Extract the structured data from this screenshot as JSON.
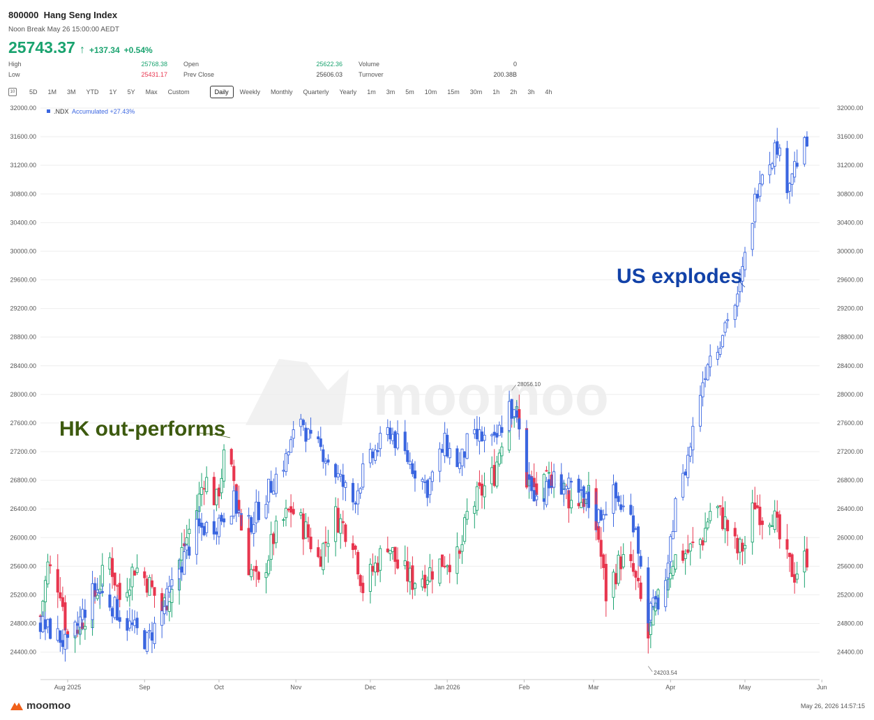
{
  "header": {
    "code": "800000",
    "name": "Hang Seng Index",
    "status": "Noon Break May 26 15:00:00 AEDT",
    "price": "25743.37",
    "change": "+137.34",
    "change_pct": "+0.54%"
  },
  "stats": {
    "high_label": "High",
    "high": "25768.38",
    "low_label": "Low",
    "low": "25431.17",
    "open_label": "Open",
    "open": "25622.36",
    "prev_label": "Prev Close",
    "prev": "25606.03",
    "vol_label": "Volume",
    "vol": "0",
    "turn_label": "Turnover",
    "turn": "200.38B"
  },
  "toolbar": {
    "icon": "10",
    "items": [
      "5D",
      "1M",
      "3M",
      "YTD",
      "1Y",
      "5Y",
      "Max",
      "Custom",
      "Daily",
      "Weekly",
      "Monthly",
      "Quarterly",
      "Yearly",
      "1m",
      "3m",
      "5m",
      "10m",
      "15m",
      "30m",
      "1h",
      "2h",
      "3h",
      "4h"
    ],
    "selected": "Daily"
  },
  "footer": {
    "brand": "moomoo",
    "timestamp": "May 26, 2026 14:57:15"
  },
  "colors": {
    "up": "#1aa36f",
    "down": "#e8364f",
    "series2": "#3b66e0",
    "grid": "#eeeeee",
    "hk_annotation": "#3d5a0f",
    "us_annotation": "#1242a8"
  },
  "chart_data": {
    "type": "candlestick",
    "watermark": "moomoo",
    "ylim": [
      24000,
      32000
    ],
    "yticks": [
      "32000.00",
      "31600.00",
      "31200.00",
      "30800.00",
      "30400.00",
      "30000.00",
      "29600.00",
      "29200.00",
      "28800.00",
      "28400.00",
      "28000.00",
      "27600.00",
      "27200.00",
      "26800.00",
      "26400.00",
      "26000.00",
      "25600.00",
      "25200.00",
      "24800.00",
      "24400.00"
    ],
    "xticks": [
      "Aug 2025",
      "Sep",
      "Oct",
      "Nov",
      "Dec",
      "Jan 2026",
      "Feb",
      "Mar",
      "Apr",
      "May",
      "Jun"
    ],
    "legend": {
      "symbol": ".NDX",
      "text": "Accumulated +27.43%"
    },
    "annotations": [
      {
        "text": "HK out-performs",
        "date": "2025-09-30",
        "value": 27250
      },
      {
        "text": "US explodes",
        "date": "2026-04-30",
        "value": 29550
      }
    ],
    "markers": [
      {
        "label": "28056.10",
        "date": "2026-01-27",
        "value": 28056.1
      },
      {
        "label": "24203.54",
        "date": "2026-03-23",
        "value": 24203.54
      }
    ],
    "series": [
      {
        "name": "800000",
        "hk_path": [
          [
            "2025-07-21",
            24900
          ],
          [
            "2025-07-24",
            25600
          ],
          [
            "2025-07-29",
            25300
          ],
          [
            "2025-08-01",
            24600
          ],
          [
            "2025-08-06",
            24800
          ],
          [
            "2025-08-12",
            25200
          ],
          [
            "2025-08-18",
            25700
          ],
          [
            "2025-08-22",
            25150
          ],
          [
            "2025-08-28",
            25600
          ],
          [
            "2025-09-02",
            25400
          ],
          [
            "2025-09-08",
            25000
          ],
          [
            "2025-09-12",
            25300
          ],
          [
            "2025-09-16",
            25800
          ],
          [
            "2025-09-22",
            26400
          ],
          [
            "2025-09-25",
            26850
          ],
          [
            "2025-09-30",
            26500
          ],
          [
            "2025-10-03",
            27100
          ],
          [
            "2025-10-07",
            26800
          ],
          [
            "2025-10-12",
            25700
          ],
          [
            "2025-10-17",
            25300
          ],
          [
            "2025-10-23",
            26000
          ],
          [
            "2025-10-30",
            26400
          ],
          [
            "2025-11-05",
            26100
          ],
          [
            "2025-11-10",
            25700
          ],
          [
            "2025-11-17",
            26300
          ],
          [
            "2025-11-24",
            26000
          ],
          [
            "2025-11-28",
            25300
          ],
          [
            "2025-12-03",
            25600
          ],
          [
            "2025-12-08",
            25950
          ],
          [
            "2025-12-12",
            25600
          ],
          [
            "2025-12-18",
            25400
          ],
          [
            "2025-12-24",
            25500
          ],
          [
            "2025-12-31",
            25700
          ],
          [
            "2026-01-06",
            25700
          ],
          [
            "2026-01-09",
            26300
          ],
          [
            "2026-01-14",
            26600
          ],
          [
            "2026-01-20",
            26900
          ],
          [
            "2026-01-26",
            27900
          ],
          [
            "2026-01-29",
            27700
          ],
          [
            "2026-02-02",
            26800
          ],
          [
            "2026-02-07",
            26600
          ],
          [
            "2026-02-13",
            26900
          ],
          [
            "2026-02-20",
            26500
          ],
          [
            "2026-02-27",
            26550
          ],
          [
            "2026-03-03",
            26000
          ],
          [
            "2026-03-06",
            25200
          ],
          [
            "2026-03-12",
            25700
          ],
          [
            "2026-03-17",
            25500
          ],
          [
            "2026-03-20",
            25100
          ],
          [
            "2026-03-23",
            24600
          ],
          [
            "2026-03-27",
            25100
          ],
          [
            "2026-04-02",
            25700
          ],
          [
            "2026-04-08",
            25800
          ],
          [
            "2026-04-14",
            26000
          ],
          [
            "2026-04-18",
            26500
          ],
          [
            "2026-04-23",
            26200
          ],
          [
            "2026-04-28",
            25800
          ],
          [
            "2026-05-01",
            25900
          ],
          [
            "2026-05-05",
            26500
          ],
          [
            "2026-05-08",
            26300
          ],
          [
            "2026-05-12",
            26350
          ],
          [
            "2026-05-14",
            26100
          ],
          [
            "2026-05-17",
            25700
          ],
          [
            "2026-05-21",
            25500
          ],
          [
            "2026-05-26",
            25743
          ]
        ]
      },
      {
        "name": ".NDX",
        "ndx_path": [
          [
            "2025-07-21",
            24800
          ],
          [
            "2025-07-29",
            24600
          ],
          [
            "2025-08-01",
            24450
          ],
          [
            "2025-08-06",
            24850
          ],
          [
            "2025-08-12",
            25300
          ],
          [
            "2025-08-18",
            25100
          ],
          [
            "2025-08-25",
            24800
          ],
          [
            "2025-09-02",
            24550
          ],
          [
            "2025-09-08",
            24950
          ],
          [
            "2025-09-14",
            25500
          ],
          [
            "2025-09-22",
            26100
          ],
          [
            "2025-09-30",
            26200
          ],
          [
            "2025-10-07",
            26500
          ],
          [
            "2025-10-12",
            26100
          ],
          [
            "2025-10-17",
            26400
          ],
          [
            "2025-10-23",
            26800
          ],
          [
            "2025-10-28",
            27100
          ],
          [
            "2025-11-03",
            27700
          ],
          [
            "2025-11-07",
            27300
          ],
          [
            "2025-11-12",
            27200
          ],
          [
            "2025-11-17",
            26900
          ],
          [
            "2025-11-24",
            26500
          ],
          [
            "2025-11-28",
            26900
          ],
          [
            "2025-12-03",
            27200
          ],
          [
            "2025-12-09",
            27500
          ],
          [
            "2025-12-12",
            27300
          ],
          [
            "2025-12-18",
            27000
          ],
          [
            "2025-12-24",
            26700
          ],
          [
            "2025-12-31",
            27300
          ],
          [
            "2026-01-06",
            27000
          ],
          [
            "2026-01-09",
            27300
          ],
          [
            "2026-01-14",
            27400
          ],
          [
            "2026-01-20",
            27300
          ],
          [
            "2026-01-26",
            27850
          ],
          [
            "2026-01-29",
            27600
          ],
          [
            "2026-02-02",
            26900
          ],
          [
            "2026-02-07",
            26500
          ],
          [
            "2026-02-13",
            26800
          ],
          [
            "2026-02-20",
            26650
          ],
          [
            "2026-02-26",
            26500
          ],
          [
            "2026-03-03",
            26300
          ],
          [
            "2026-03-09",
            26600
          ],
          [
            "2026-03-14",
            26350
          ],
          [
            "2026-03-18",
            26200
          ],
          [
            "2026-03-22",
            24900
          ],
          [
            "2026-03-27",
            25100
          ],
          [
            "2026-03-31",
            25500
          ],
          [
            "2026-04-03",
            26600
          ],
          [
            "2026-04-06",
            26800
          ],
          [
            "2026-04-09",
            27300
          ],
          [
            "2026-04-12",
            27900
          ],
          [
            "2026-04-16",
            28500
          ],
          [
            "2026-04-20",
            28700
          ],
          [
            "2026-04-24",
            29100
          ],
          [
            "2026-04-28",
            29300
          ],
          [
            "2026-05-01",
            29900
          ],
          [
            "2026-05-04",
            30500
          ],
          [
            "2026-05-07",
            31100
          ],
          [
            "2026-05-11",
            31300
          ],
          [
            "2026-05-14",
            31500
          ],
          [
            "2026-05-17",
            30900
          ],
          [
            "2026-05-21",
            31200
          ],
          [
            "2026-05-26",
            31500
          ]
        ]
      }
    ]
  }
}
